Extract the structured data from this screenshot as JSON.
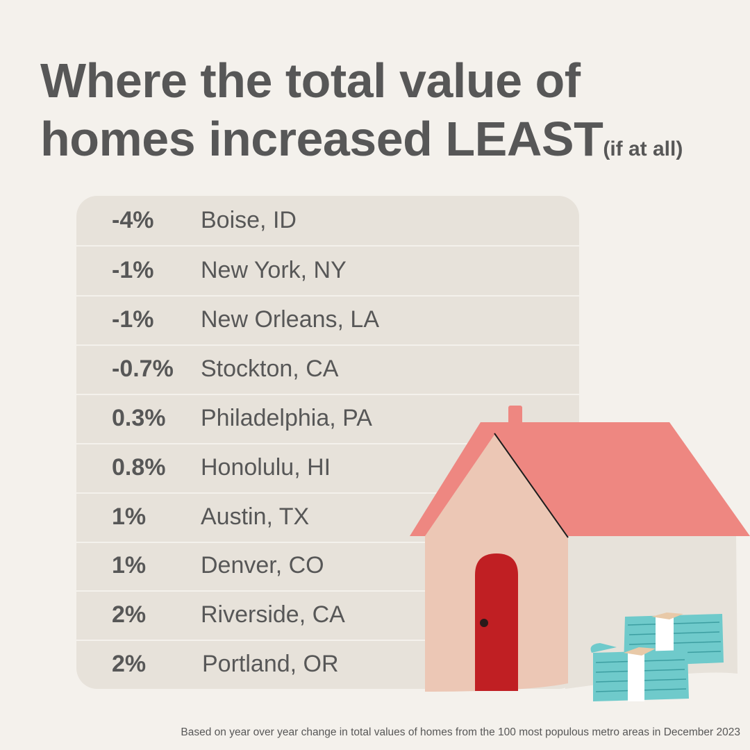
{
  "title": {
    "line1": "Where the total value of",
    "line2": "homes increased LEAST",
    "suffix": "(if at all)"
  },
  "rows": [
    {
      "pct": "-4%",
      "city": "Boise, ID"
    },
    {
      "pct": "-1%",
      "city": "New York, NY"
    },
    {
      "pct": "-1%",
      "city": "New Orleans, LA"
    },
    {
      "pct": "-0.7%",
      "city": "Stockton, CA"
    },
    {
      "pct": "0.3%",
      "city": "Philadelphia, PA"
    },
    {
      "pct": "0.8%",
      "city": "Honolulu, HI"
    },
    {
      "pct": "1%",
      "city": "Austin, TX"
    },
    {
      "pct": "1%",
      "city": "Denver, CO"
    },
    {
      "pct": "2%",
      "city": "Riverside, CA"
    },
    {
      "pct": "2%",
      "city": "Portland, OR"
    }
  ],
  "footnote": "Based on year over year change in total values of homes from the 100 most populous metro areas in December 2023",
  "colors": {
    "background": "#f4f1ec",
    "panel": "#e7e2da",
    "text": "#575757",
    "roof": "#ee8781",
    "house_wall": "#ecc7b5",
    "door": "#c01f23",
    "money": "#6fcacb"
  },
  "illustration": {
    "house": "house-illustration",
    "money": "cash-stack-icon"
  }
}
